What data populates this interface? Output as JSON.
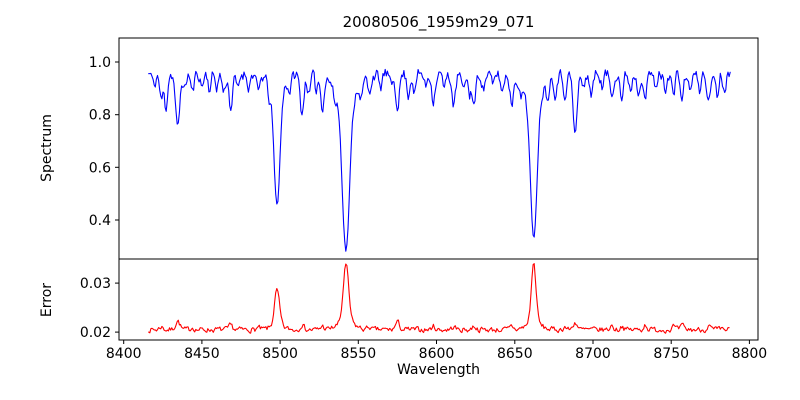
{
  "figure": {
    "background": "#ffffff",
    "frame_color": "#000000",
    "text_color": "#000000"
  },
  "chart_data": {
    "type": "line",
    "title": "20080506_1959m29_071",
    "xlabel": "Wavelength",
    "grid": false,
    "legend": null,
    "xlim": [
      8397,
      8805.5
    ],
    "xticks": [
      8400,
      8450,
      8500,
      8550,
      8600,
      8650,
      8700,
      8750,
      8800
    ],
    "xtick_labels": [
      "8400",
      "8450",
      "8500",
      "8550",
      "8600",
      "8650",
      "8700",
      "8750",
      "8800"
    ],
    "panels": [
      {
        "name": "spectrum",
        "ylabel": "Spectrum",
        "ylim": [
          0.252,
          1.091
        ],
        "yticks": [
          0.4,
          0.6,
          0.8,
          1.0
        ],
        "ytick_labels": [
          "0.4",
          "0.6",
          "0.8",
          "1.0"
        ],
        "line_color": "#0000ff",
        "notable_lines": [
          {
            "wavelength": 8498,
            "min_value": 0.46,
            "id": "Ca II 8498"
          },
          {
            "wavelength": 8542,
            "min_value": 0.29,
            "id": "Ca II 8542"
          },
          {
            "wavelength": 8662,
            "min_value": 0.33,
            "id": "Ca II 8662"
          },
          {
            "wavelength": 8688,
            "min_value": 0.73,
            "id": "Fe I 8688"
          }
        ],
        "series": {
          "x_start": 8416,
          "x_end": 8788,
          "x_step": 0.7,
          "baseline": 0.955,
          "noise_amp": 0.02,
          "noise_persistence": 0.4,
          "noise_scales_with_level": true,
          "seed": 11,
          "feature_direction": "down",
          "features": [
            [
              8419.5,
              0.05,
              0.9
            ],
            [
              8424,
              0.1,
              1.0
            ],
            [
              8427,
              0.13,
              1.0
            ],
            [
              8434.5,
              0.21,
              1.3
            ],
            [
              8439,
              0.06,
              0.9
            ],
            [
              8444,
              0.07,
              1.0
            ],
            [
              8450,
              0.05,
              0.9
            ],
            [
              8455,
              0.06,
              0.9
            ],
            [
              8459.5,
              0.05,
              0.9
            ],
            [
              8464,
              0.07,
              1.0
            ],
            [
              8468.5,
              0.13,
              1.2
            ],
            [
              8473,
              0.06,
              0.9
            ],
            [
              8480,
              0.05,
              0.9
            ],
            [
              8486,
              0.07,
              1.0
            ],
            [
              8493,
              0.05,
              0.9
            ],
            [
              8498.0,
              0.44,
              1.9
            ],
            [
              8498.0,
              0.06,
              5.0
            ],
            [
              8506,
              0.05,
              1.0
            ],
            [
              8514,
              0.15,
              1.2
            ],
            [
              8518.5,
              0.08,
              1.0
            ],
            [
              8523,
              0.06,
              0.9
            ],
            [
              8527,
              0.12,
              1.1
            ],
            [
              8535,
              0.05,
              1.0
            ],
            [
              8542.1,
              0.57,
              2.3
            ],
            [
              8542.1,
              0.1,
              6.5
            ],
            [
              8552,
              0.06,
              1.0
            ],
            [
              8557,
              0.07,
              1.0
            ],
            [
              8564,
              0.06,
              0.9
            ],
            [
              8571,
              0.05,
              0.9
            ],
            [
              8575,
              0.12,
              1.2
            ],
            [
              8582,
              0.08,
              1.0
            ],
            [
              8586,
              0.07,
              0.9
            ],
            [
              8593,
              0.05,
              0.9
            ],
            [
              8598,
              0.1,
              1.1
            ],
            [
              8605,
              0.06,
              0.9
            ],
            [
              8611,
              0.12,
              1.2
            ],
            [
              8617,
              0.07,
              0.9
            ],
            [
              8621,
              0.08,
              0.9
            ],
            [
              8624,
              0.12,
              1.1
            ],
            [
              8630,
              0.06,
              0.9
            ],
            [
              8636,
              0.05,
              0.9
            ],
            [
              8642,
              0.07,
              1.0
            ],
            [
              8648,
              0.11,
              1.1
            ],
            [
              8654,
              0.06,
              0.9
            ],
            [
              8662.1,
              0.54,
              2.1
            ],
            [
              8662.1,
              0.09,
              6.0
            ],
            [
              8671,
              0.06,
              0.9
            ],
            [
              8676,
              0.07,
              0.9
            ],
            [
              8682,
              0.08,
              1.0
            ],
            [
              8688.6,
              0.23,
              1.3
            ],
            [
              8694,
              0.06,
              0.9
            ],
            [
              8699,
              0.08,
              1.0
            ],
            [
              8706,
              0.05,
              0.9
            ],
            [
              8712,
              0.08,
              1.0
            ],
            [
              8718.5,
              0.1,
              1.0
            ],
            [
              8724,
              0.06,
              0.9
            ],
            [
              8729,
              0.07,
              0.9
            ],
            [
              8733.5,
              0.09,
              1.0
            ],
            [
              8740,
              0.06,
              0.9
            ],
            [
              8746,
              0.06,
              0.9
            ],
            [
              8751.5,
              0.08,
              1.0
            ],
            [
              8757,
              0.1,
              1.0
            ],
            [
              8762,
              0.07,
              0.9
            ],
            [
              8768,
              0.07,
              0.9
            ],
            [
              8774,
              0.11,
              1.1
            ],
            [
              8779.5,
              0.08,
              0.9
            ],
            [
              8784,
              0.06,
              0.9
            ]
          ]
        }
      },
      {
        "name": "error",
        "ylabel": "Error",
        "ylim": [
          0.0184,
          0.0349
        ],
        "yticks": [
          0.02,
          0.03
        ],
        "ytick_labels": [
          "0.02",
          "0.03"
        ],
        "line_color": "#ff0000",
        "notable_peaks": [
          {
            "wavelength": 8498,
            "max_value": 0.0285
          },
          {
            "wavelength": 8542,
            "max_value": 0.0337
          },
          {
            "wavelength": 8662,
            "max_value": 0.034
          }
        ],
        "series": {
          "x_start": 8416,
          "x_end": 8787,
          "x_step": 0.7,
          "baseline": 0.0205,
          "noise_amp": 0.0005,
          "noise_persistence": 0.4,
          "noise_scales_with_level": false,
          "seed": 7,
          "feature_direction": "up",
          "features": [
            [
              8424,
              0.0006,
              1.2
            ],
            [
              8434.5,
              0.0018,
              1.4
            ],
            [
              8444,
              0.0005,
              1.0
            ],
            [
              8468.5,
              0.0008,
              1.2
            ],
            [
              8486,
              0.0004,
              1.0
            ],
            [
              8498.0,
              0.0072,
              1.6
            ],
            [
              8498.0,
              0.0008,
              4.0
            ],
            [
              8514,
              0.0011,
              1.2
            ],
            [
              8527,
              0.0007,
              1.1
            ],
            [
              8542.1,
              0.0114,
              1.7
            ],
            [
              8542.1,
              0.0018,
              5.0
            ],
            [
              8557,
              0.0006,
              1.0
            ],
            [
              8575,
              0.0015,
              1.3
            ],
            [
              8598,
              0.0007,
              1.1
            ],
            [
              8611,
              0.0006,
              1.1
            ],
            [
              8624,
              0.0008,
              1.1
            ],
            [
              8648,
              0.0007,
              1.1
            ],
            [
              8662.1,
              0.012,
              1.5
            ],
            [
              8662.1,
              0.0015,
              4.5
            ],
            [
              8682,
              0.0006,
              1.0
            ],
            [
              8688.6,
              0.0015,
              1.3
            ],
            [
              8712,
              0.0008,
              1.1
            ],
            [
              8718.5,
              0.0008,
              1.0
            ],
            [
              8733.5,
              0.001,
              1.1
            ],
            [
              8751.5,
              0.0007,
              1.0
            ],
            [
              8757,
              0.0008,
              1.0
            ],
            [
              8774,
              0.0008,
              1.0
            ]
          ]
        }
      }
    ]
  }
}
